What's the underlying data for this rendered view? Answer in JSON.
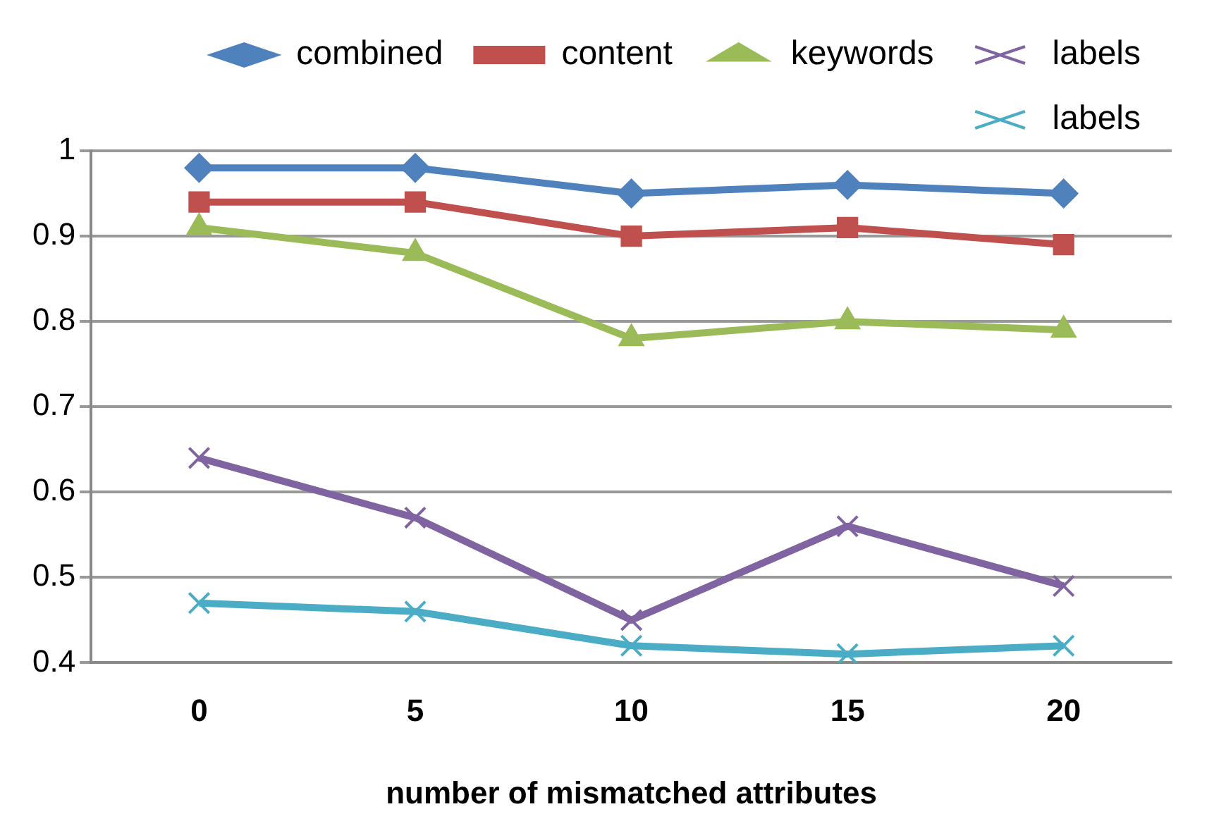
{
  "chart_data": {
    "type": "line",
    "xlabel": "number of mismatched attributes",
    "categories": [
      "0",
      "5",
      "10",
      "15",
      "20"
    ],
    "series": [
      {
        "name": "combined",
        "color": "#4f81bd",
        "marker": "diamond",
        "values": [
          0.98,
          0.98,
          0.95,
          0.96,
          0.95
        ]
      },
      {
        "name": "content",
        "color": "#c0504d",
        "marker": "square",
        "values": [
          0.94,
          0.94,
          0.9,
          0.91,
          0.89
        ]
      },
      {
        "name": "keywords",
        "color": "#9bbb59",
        "marker": "triangle",
        "values": [
          0.91,
          0.88,
          0.78,
          0.8,
          0.79
        ]
      },
      {
        "name": "labels",
        "color": "#8064a2",
        "marker": "cross",
        "values": [
          0.64,
          0.57,
          0.45,
          0.56,
          0.49
        ]
      },
      {
        "name": "labels",
        "color": "#4bacc6",
        "marker": "cross",
        "values": [
          0.47,
          0.46,
          0.42,
          0.41,
          0.42
        ]
      }
    ],
    "ylim": [
      0.4,
      1
    ],
    "yticks": [
      0.4,
      0.5,
      0.6,
      0.7,
      0.8,
      0.9,
      1
    ],
    "grid": "y",
    "legend": "top"
  }
}
